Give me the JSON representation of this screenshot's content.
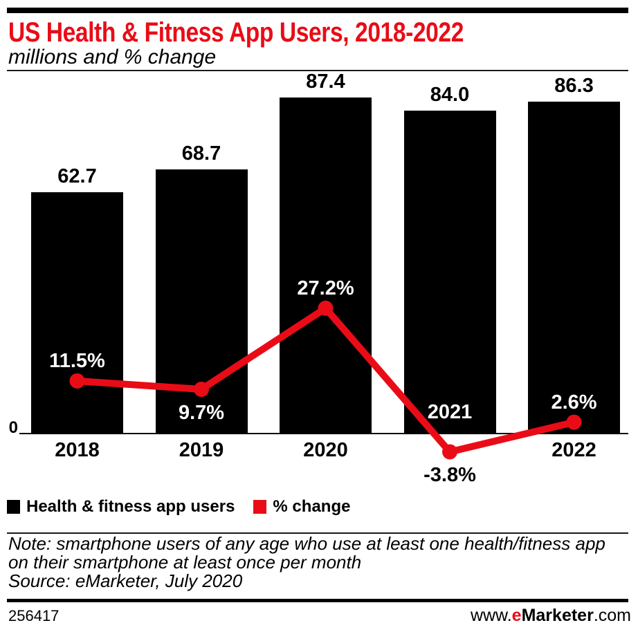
{
  "header": {
    "title": "US Health & Fitness App Users, 2018-2022",
    "subtitle": "millions and % change"
  },
  "chart_data": {
    "type": "bar+line",
    "categories": [
      "2018",
      "2019",
      "2020",
      "2021",
      "2022"
    ],
    "series": [
      {
        "name": "Health & fitness app users",
        "type": "bar",
        "color": "#000000",
        "values": [
          62.7,
          68.7,
          87.4,
          84.0,
          86.3
        ],
        "value_labels": [
          "62.7",
          "68.7",
          "87.4",
          "84.0",
          "86.3"
        ],
        "unit": "millions"
      },
      {
        "name": "% change",
        "type": "line",
        "color": "#e90c17",
        "values": [
          11.5,
          9.7,
          27.2,
          -3.8,
          2.6
        ],
        "value_labels": [
          "11.5%",
          "9.7%",
          "27.2%",
          "-3.8%",
          "2.6%"
        ],
        "label_positions": [
          "above",
          "below",
          "above",
          "below",
          "above"
        ],
        "label_colors": [
          "#ffffff",
          "#ffffff",
          "#ffffff",
          "#000000",
          "#ffffff"
        ]
      }
    ],
    "category_label_styles": [
      {
        "placement": "below-axis",
        "color": "#000000"
      },
      {
        "placement": "below-axis",
        "color": "#000000"
      },
      {
        "placement": "below-axis",
        "color": "#000000"
      },
      {
        "placement": "inside-bar",
        "color": "#ffffff"
      },
      {
        "placement": "below-axis",
        "color": "#000000"
      }
    ],
    "y_axis": {
      "zero_label": "0"
    },
    "grid": false,
    "legend_position": "bottom"
  },
  "legend": {
    "items": [
      {
        "label": "Health & fitness app users",
        "color": "#000000"
      },
      {
        "label": "% change",
        "color": "#e90c17"
      }
    ]
  },
  "notes": {
    "note_line1": "Note: smartphone users of any age who use at least one health/fitness app",
    "note_line2": "on their smartphone at least once per month",
    "source": "Source: eMarketer, July 2020"
  },
  "footer": {
    "chart_id": "256417",
    "url_prefix": "www.",
    "brand_accent": "e",
    "brand_rest": "Marketer",
    "url_suffix": ".com"
  },
  "colors": {
    "accent_red": "#e90c17",
    "bar_black": "#000000",
    "title_red": "#e90c17"
  }
}
